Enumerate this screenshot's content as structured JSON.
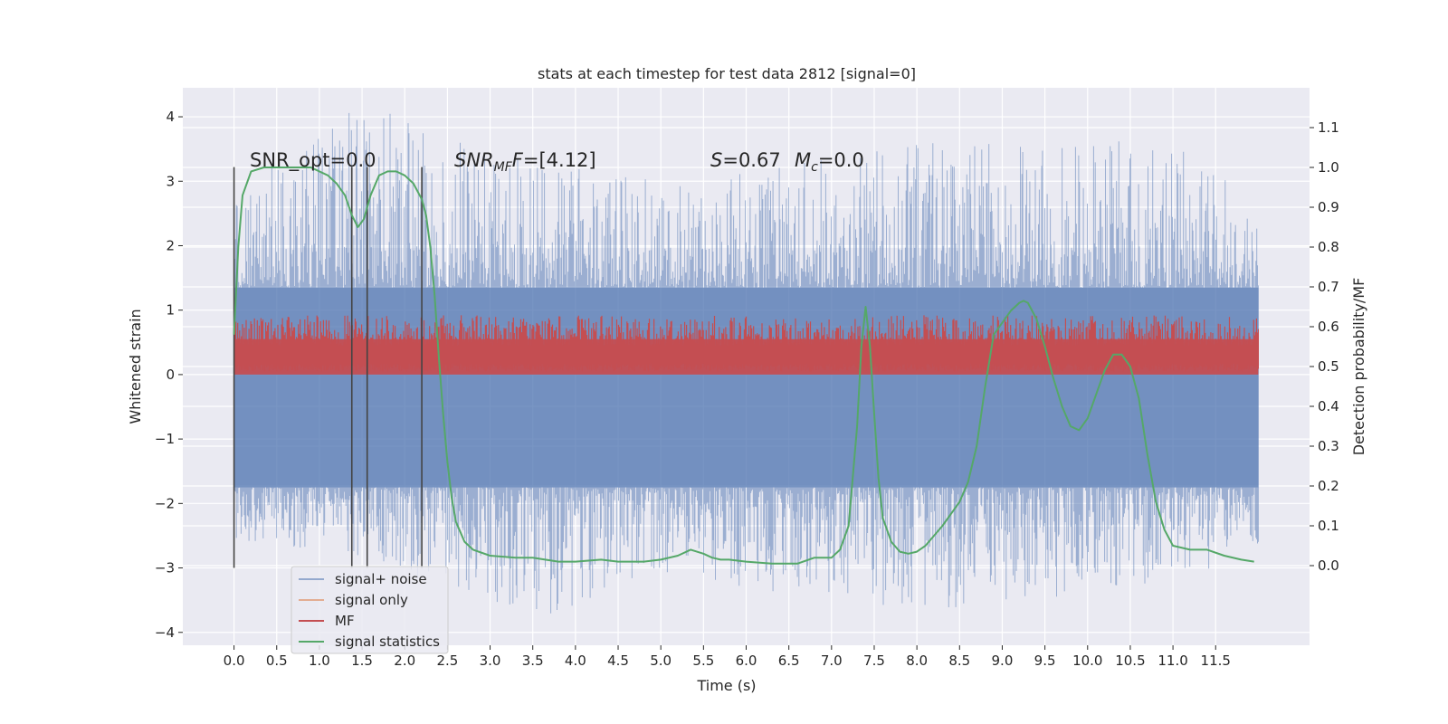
{
  "chart_data": {
    "type": "line",
    "title": "stats at each timestep for test data 2812 [signal=0]",
    "xlabel": "Time (s)",
    "ylabel": "Whitened strain",
    "y2label": "Detection probability/MF",
    "xlim": [
      -0.6,
      12.6
    ],
    "ylim": [
      -4.2,
      4.45
    ],
    "y2lim": [
      -0.2,
      1.2
    ],
    "xticks": [
      0.0,
      0.5,
      1.0,
      1.5,
      2.0,
      2.5,
      3.0,
      3.5,
      4.0,
      4.5,
      5.0,
      5.5,
      6.0,
      6.5,
      7.0,
      7.5,
      8.0,
      8.5,
      9.0,
      9.5,
      10.0,
      10.5,
      11.0,
      11.5
    ],
    "xtick_labels": [
      "0.0",
      "0.5",
      "1.0",
      "1.5",
      "2.0",
      "2.5",
      "3.0",
      "3.5",
      "4.0",
      "4.5",
      "5.0",
      "5.5",
      "6.0",
      "6.5",
      "7.0",
      "7.5",
      "8.0",
      "8.5",
      "9.0",
      "9.5",
      "10.0",
      "10.5",
      "11.0",
      "11.5"
    ],
    "yticks": [
      -4,
      -3,
      -2,
      -1,
      0,
      1,
      2,
      3,
      4
    ],
    "ytick_labels": [
      "−4",
      "−3",
      "−2",
      "−1",
      "0",
      "1",
      "2",
      "3",
      "4"
    ],
    "y2ticks": [
      0.0,
      0.1,
      0.2,
      0.3,
      0.4,
      0.5,
      0.6,
      0.7,
      0.8,
      0.9,
      1.0,
      1.1
    ],
    "y2tick_labels": [
      "0.0",
      "0.1",
      "0.2",
      "0.3",
      "0.4",
      "0.5",
      "0.6",
      "0.7",
      "0.8",
      "0.9",
      "1.0",
      "1.1"
    ],
    "grid": true,
    "legend_position": "lower-left",
    "annotations": {
      "snr_opt": "SNR_opt=0.0",
      "snr_mf": "=[4.12]",
      "s_value": "=0.67",
      "mc_value": "=0.0"
    },
    "vertical_lines_x": [
      0.0,
      1.38,
      1.56,
      2.2
    ],
    "vertical_lines_yrange": [
      -3.0,
      3.22
    ],
    "series": [
      {
        "name": "signal+ noise",
        "axis": "left",
        "color": "#4c72b0",
        "opacity": 0.5,
        "x_range": [
          0.0,
          12.0
        ],
        "envelope_upper": [
          [
            0.0,
            2.6
          ],
          [
            1.0,
            4.05
          ],
          [
            1.9,
            4.1
          ],
          [
            2.9,
            3.45
          ],
          [
            3.9,
            3.3
          ],
          [
            5.4,
            3.1
          ],
          [
            7.0,
            3.35
          ],
          [
            8.5,
            3.7
          ],
          [
            9.4,
            3.55
          ],
          [
            10.4,
            3.65
          ],
          [
            11.5,
            3.4
          ],
          [
            12.0,
            2.4
          ]
        ],
        "envelope_lower": [
          [
            0.0,
            -2.6
          ],
          [
            1.2,
            -2.75
          ],
          [
            3.6,
            -3.85
          ],
          [
            5.0,
            -3.1
          ],
          [
            6.5,
            -3.45
          ],
          [
            8.5,
            -3.7
          ],
          [
            9.0,
            -3.8
          ],
          [
            10.0,
            -3.3
          ],
          [
            11.5,
            -3.2
          ],
          [
            12.0,
            -2.7
          ]
        ],
        "band_upper": 1.35,
        "band_lower": -1.75
      },
      {
        "name": "signal only",
        "axis": "left",
        "color": "#dd8452",
        "values": []
      },
      {
        "name": "MF",
        "axis": "left",
        "color": "#c44e52",
        "x_range": [
          0.0,
          12.0
        ],
        "band_lower": 0.0,
        "band_upper": 0.55,
        "peak_max": 0.92
      },
      {
        "name": "signal statistics",
        "axis": "right",
        "color": "#55a868",
        "x": [
          0.0,
          0.05,
          0.1,
          0.2,
          0.35,
          0.5,
          0.7,
          0.9,
          1.1,
          1.2,
          1.3,
          1.38,
          1.45,
          1.52,
          1.6,
          1.7,
          1.8,
          1.9,
          2.0,
          2.1,
          2.2,
          2.25,
          2.3,
          2.35,
          2.4,
          2.45,
          2.5,
          2.55,
          2.6,
          2.7,
          2.8,
          3.0,
          3.3,
          3.5,
          3.8,
          4.0,
          4.3,
          4.5,
          4.8,
          5.0,
          5.2,
          5.35,
          5.5,
          5.6,
          5.7,
          5.8,
          6.0,
          6.3,
          6.6,
          6.8,
          7.0,
          7.1,
          7.2,
          7.3,
          7.35,
          7.4,
          7.45,
          7.5,
          7.55,
          7.6,
          7.7,
          7.8,
          7.9,
          8.0,
          8.1,
          8.3,
          8.5,
          8.6,
          8.7,
          8.8,
          8.9,
          9.0,
          9.1,
          9.2,
          9.25,
          9.3,
          9.4,
          9.5,
          9.6,
          9.7,
          9.8,
          9.9,
          10.0,
          10.1,
          10.2,
          10.3,
          10.4,
          10.5,
          10.6,
          10.7,
          10.8,
          10.9,
          11.0,
          11.2,
          11.4,
          11.6,
          11.8,
          11.95
        ],
        "values": [
          0.58,
          0.8,
          0.93,
          0.99,
          1.0,
          1.0,
          1.0,
          1.0,
          0.98,
          0.96,
          0.93,
          0.88,
          0.85,
          0.87,
          0.93,
          0.98,
          0.99,
          0.99,
          0.98,
          0.96,
          0.92,
          0.88,
          0.8,
          0.68,
          0.52,
          0.38,
          0.26,
          0.17,
          0.11,
          0.06,
          0.04,
          0.025,
          0.02,
          0.02,
          0.01,
          0.01,
          0.015,
          0.01,
          0.01,
          0.015,
          0.025,
          0.04,
          0.03,
          0.02,
          0.015,
          0.015,
          0.01,
          0.005,
          0.005,
          0.02,
          0.02,
          0.04,
          0.1,
          0.35,
          0.55,
          0.65,
          0.55,
          0.38,
          0.22,
          0.12,
          0.06,
          0.035,
          0.03,
          0.035,
          0.05,
          0.1,
          0.16,
          0.21,
          0.3,
          0.45,
          0.58,
          0.61,
          0.64,
          0.66,
          0.665,
          0.66,
          0.62,
          0.55,
          0.47,
          0.4,
          0.35,
          0.34,
          0.37,
          0.43,
          0.49,
          0.53,
          0.53,
          0.5,
          0.42,
          0.28,
          0.16,
          0.09,
          0.05,
          0.04,
          0.04,
          0.025,
          0.015,
          0.01
        ]
      }
    ]
  },
  "colors": {
    "plot_bg": "#eaeaf2",
    "grid": "#ffffff",
    "vertical_lines": "#444444"
  }
}
